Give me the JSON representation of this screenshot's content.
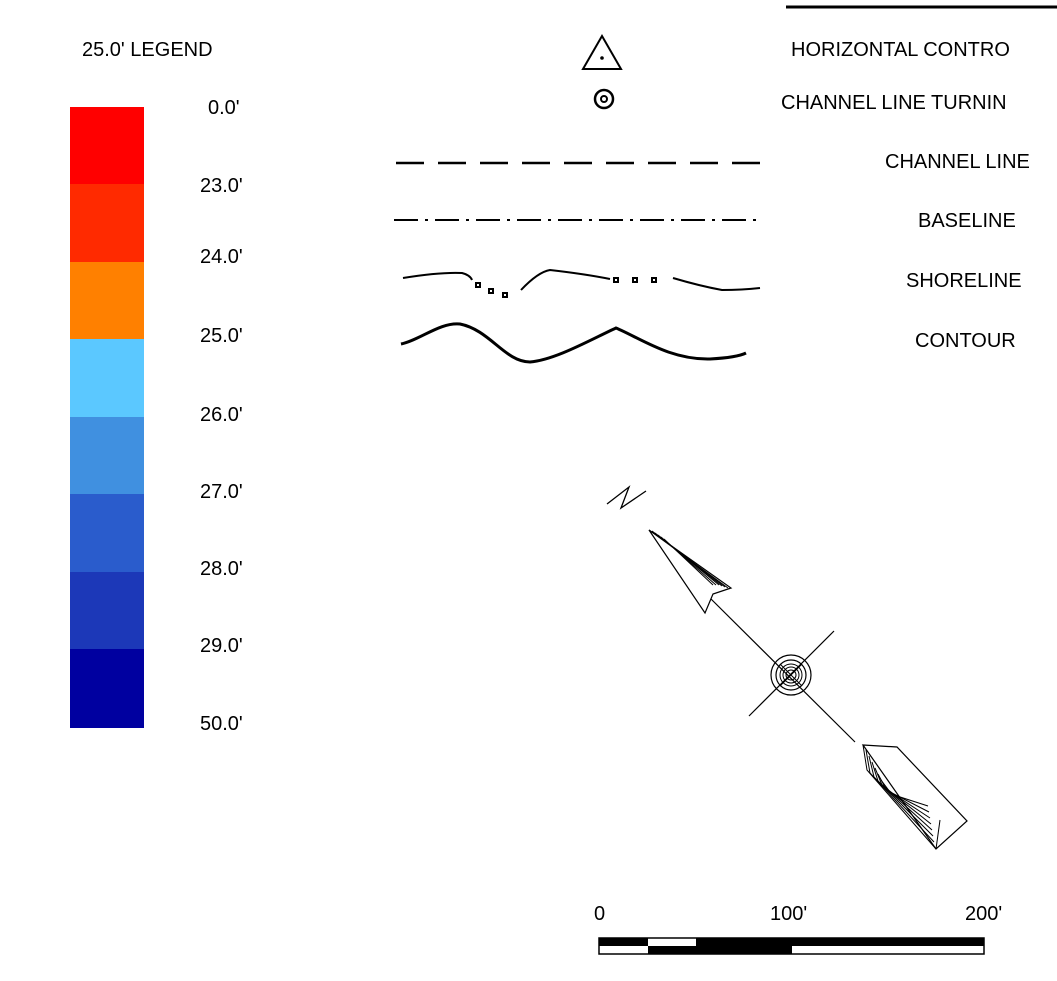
{
  "legend": {
    "title": "25.0' LEGEND",
    "depth_labels": [
      "0.0'",
      "23.0'",
      "24.0'",
      "25.0'",
      "26.0'",
      "27.0'",
      "28.0'",
      "29.0'",
      "50.0'"
    ],
    "color_bands": [
      "#ff0000",
      "#ff2a00",
      "#ff8000",
      "#5bc8ff",
      "#4090e0",
      "#2a5ccc",
      "#1c38b8",
      "#0000a0"
    ]
  },
  "symbols": {
    "horizontal_control": "HORIZONTAL CONTRO",
    "channel_line_turning": "CHANNEL LINE TURNIN",
    "channel_line": "CHANNEL LINE",
    "baseline": "BASELINE",
    "shoreline": "SHORELINE",
    "contour": "CONTOUR"
  },
  "north_arrow": {
    "letter": "N"
  },
  "scale_bar": {
    "labels": [
      "0",
      "100'",
      "200'"
    ]
  }
}
